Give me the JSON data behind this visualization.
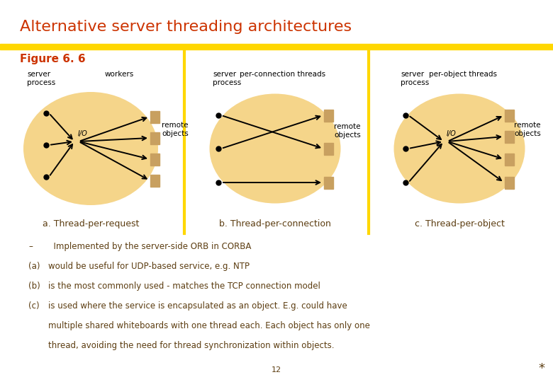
{
  "title": "Alternative server threading architectures",
  "title_color": "#cc3300",
  "gold_bar_color": "#FFD700",
  "figure_label": "Figure 6. 6",
  "figure_label_color": "#cc3300",
  "bg_color": "#ffffff",
  "ellipse_color": "#F5D58A",
  "body_text_color": "#5C3D11",
  "diagram_text_color": "#000000",
  "rect_color": "#C8A060",
  "bullet_lines": [
    [
      "–",
      "  Implemented by the server-side ORB in CORBA"
    ],
    [
      "(a)",
      "would be useful for UDP-based service, e.g. NTP"
    ],
    [
      "(b)",
      "is the most commonly used - matches the TCP connection model"
    ],
    [
      "(c)",
      "is used where the service is encapsulated as an object. E.g. could have"
    ],
    [
      "",
      "multiple shared whiteboards with one thread each. Each object has only one"
    ],
    [
      "",
      "thread, avoiding the need for thread synchronization within objects."
    ]
  ],
  "page_num": "12",
  "asterisk": "*"
}
